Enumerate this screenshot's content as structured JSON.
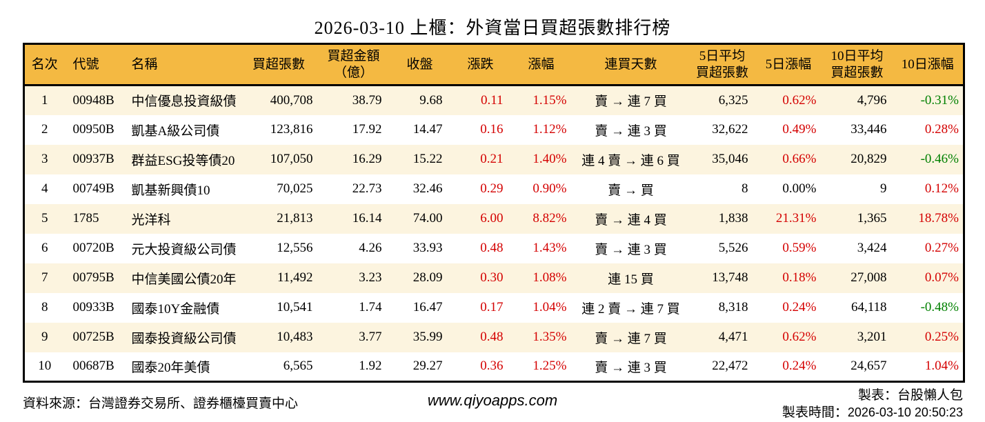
{
  "title": "2026-03-10 上櫃：外資當日買超張數排行榜",
  "colors": {
    "header_bg": "#F4B942",
    "row_stripe": "#FCF4DF",
    "up_red": "#D40000",
    "down_green": "#008000"
  },
  "chart_data": {
    "type": "table",
    "title": "2026-03-10 上櫃：外資當日買超張數排行榜",
    "columns": [
      [
        "名次"
      ],
      [
        "代號"
      ],
      [
        "名稱"
      ],
      [
        "買超張數"
      ],
      [
        "買超金額",
        "（億）"
      ],
      [
        "收盤"
      ],
      [
        "漲跌"
      ],
      [
        "漲幅"
      ],
      [
        "連買天數"
      ],
      [
        "5日平均",
        "買超張數"
      ],
      [
        "5日漲幅"
      ],
      [
        "10日平均",
        "買超張數"
      ],
      [
        "10日漲幅"
      ]
    ],
    "rows": [
      {
        "rank": "1",
        "code": "00948B",
        "name": "中信優息投資級債",
        "volume": "400,708",
        "amount": "38.79",
        "close": "9.68",
        "change": "0.11",
        "change_color": "red",
        "change_pct": "1.15%",
        "change_pct_color": "red",
        "streak": "賣 → 連 7 買",
        "avg5": "6,325",
        "pct5": "0.62%",
        "pct5_color": "red",
        "avg10": "4,796",
        "pct10": "-0.31%",
        "pct10_color": "green"
      },
      {
        "rank": "2",
        "code": "00950B",
        "name": "凱基A級公司債",
        "volume": "123,816",
        "amount": "17.92",
        "close": "14.47",
        "change": "0.16",
        "change_color": "red",
        "change_pct": "1.12%",
        "change_pct_color": "red",
        "streak": "賣 → 連 3 買",
        "avg5": "32,622",
        "pct5": "0.49%",
        "pct5_color": "red",
        "avg10": "33,446",
        "pct10": "0.28%",
        "pct10_color": "red"
      },
      {
        "rank": "3",
        "code": "00937B",
        "name": "群益ESG投等債20",
        "volume": "107,050",
        "amount": "16.29",
        "close": "15.22",
        "change": "0.21",
        "change_color": "red",
        "change_pct": "1.40%",
        "change_pct_color": "red",
        "streak": "連 4 賣 → 連 6 買",
        "avg5": "35,046",
        "pct5": "0.66%",
        "pct5_color": "red",
        "avg10": "20,829",
        "pct10": "-0.46%",
        "pct10_color": "green"
      },
      {
        "rank": "4",
        "code": "00749B",
        "name": "凱基新興債10",
        "volume": "70,025",
        "amount": "22.73",
        "close": "32.46",
        "change": "0.29",
        "change_color": "red",
        "change_pct": "0.90%",
        "change_pct_color": "red",
        "streak": "賣 → 買",
        "avg5": "8",
        "pct5": "0.00%",
        "pct5_color": "black",
        "avg10": "9",
        "pct10": "0.12%",
        "pct10_color": "red"
      },
      {
        "rank": "5",
        "code": "1785",
        "name": "光洋科",
        "volume": "21,813",
        "amount": "16.14",
        "close": "74.00",
        "change": "6.00",
        "change_color": "red",
        "change_pct": "8.82%",
        "change_pct_color": "red",
        "streak": "賣 → 連 4 買",
        "avg5": "1,838",
        "pct5": "21.31%",
        "pct5_color": "red",
        "avg10": "1,365",
        "pct10": "18.78%",
        "pct10_color": "red"
      },
      {
        "rank": "6",
        "code": "00720B",
        "name": "元大投資級公司債",
        "volume": "12,556",
        "amount": "4.26",
        "close": "33.93",
        "change": "0.48",
        "change_color": "red",
        "change_pct": "1.43%",
        "change_pct_color": "red",
        "streak": "賣 → 連 3 買",
        "avg5": "5,526",
        "pct5": "0.59%",
        "pct5_color": "red",
        "avg10": "3,424",
        "pct10": "0.27%",
        "pct10_color": "red"
      },
      {
        "rank": "7",
        "code": "00795B",
        "name": "中信美國公債20年",
        "volume": "11,492",
        "amount": "3.23",
        "close": "28.09",
        "change": "0.30",
        "change_color": "red",
        "change_pct": "1.08%",
        "change_pct_color": "red",
        "streak": "連 15 買",
        "avg5": "13,748",
        "pct5": "0.18%",
        "pct5_color": "red",
        "avg10": "27,008",
        "pct10": "0.07%",
        "pct10_color": "red"
      },
      {
        "rank": "8",
        "code": "00933B",
        "name": "國泰10Y金融債",
        "volume": "10,541",
        "amount": "1.74",
        "close": "16.47",
        "change": "0.17",
        "change_color": "red",
        "change_pct": "1.04%",
        "change_pct_color": "red",
        "streak": "連 2 賣 → 連 7 買",
        "avg5": "8,318",
        "pct5": "0.24%",
        "pct5_color": "red",
        "avg10": "64,118",
        "pct10": "-0.48%",
        "pct10_color": "green"
      },
      {
        "rank": "9",
        "code": "00725B",
        "name": "國泰投資級公司債",
        "volume": "10,483",
        "amount": "3.77",
        "close": "35.99",
        "change": "0.48",
        "change_color": "red",
        "change_pct": "1.35%",
        "change_pct_color": "red",
        "streak": "賣 → 連 7 買",
        "avg5": "4,471",
        "pct5": "0.62%",
        "pct5_color": "red",
        "avg10": "3,201",
        "pct10": "0.25%",
        "pct10_color": "red"
      },
      {
        "rank": "10",
        "code": "00687B",
        "name": "國泰20年美債",
        "volume": "6,565",
        "amount": "1.92",
        "close": "29.27",
        "change": "0.36",
        "change_color": "red",
        "change_pct": "1.25%",
        "change_pct_color": "red",
        "streak": "賣 → 連 3 買",
        "avg5": "22,472",
        "pct5": "0.24%",
        "pct5_color": "red",
        "avg10": "24,657",
        "pct10": "1.04%",
        "pct10_color": "red"
      }
    ]
  },
  "footer": {
    "source": "資料來源：台灣證券交易所、證券櫃檯買賣中心",
    "website": "www.qiyoapps.com",
    "made_by": "製表：台股懶人包",
    "time_label": "製表時間：",
    "time_value": "2026-03-10 20:50:23"
  }
}
